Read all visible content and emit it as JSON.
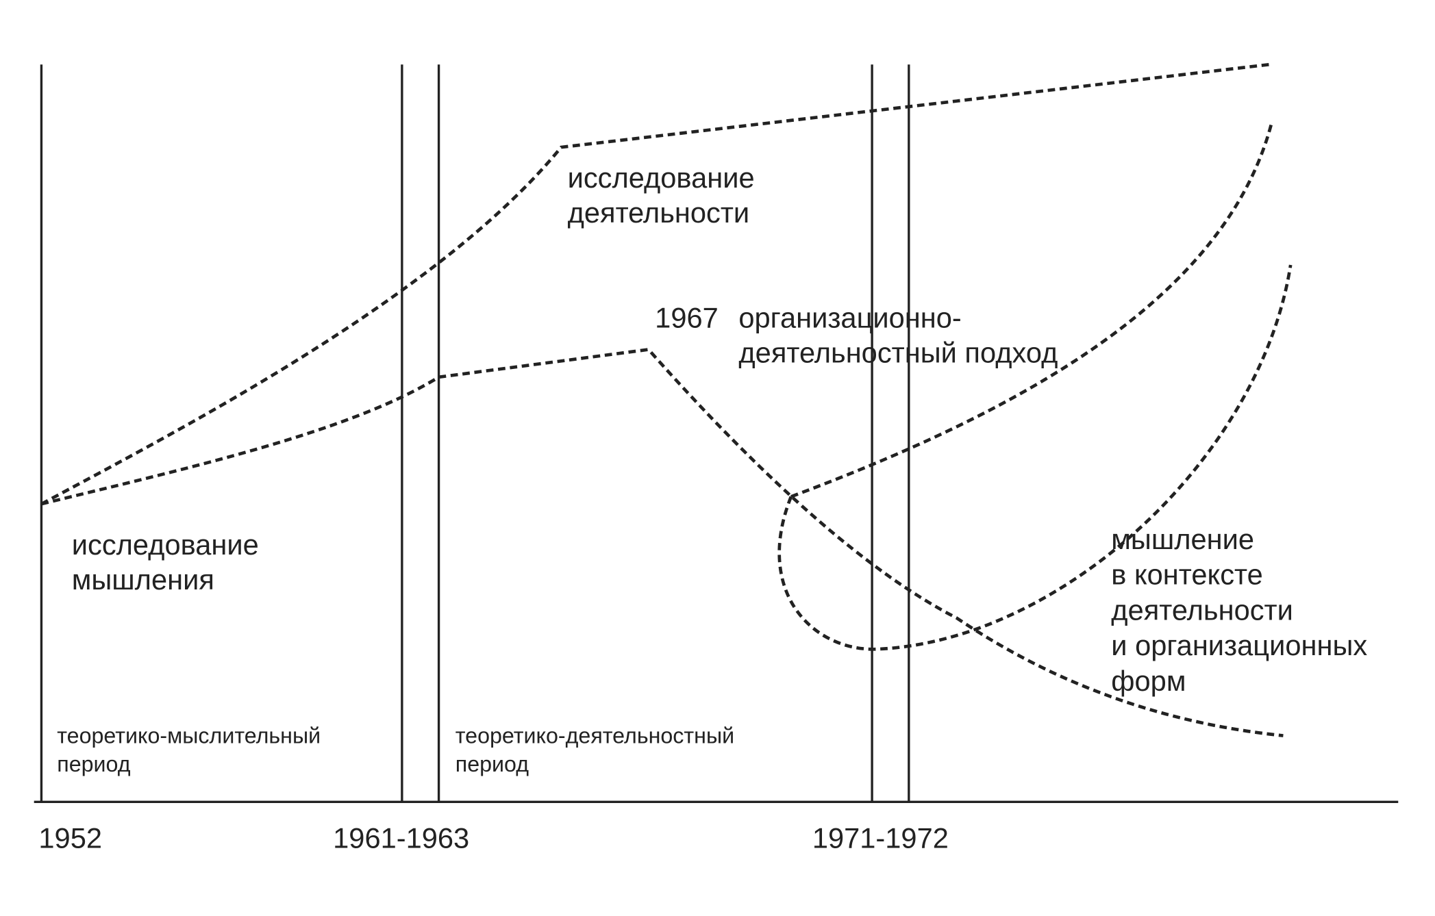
{
  "years": [
    "1952",
    "1961-1963",
    "1971-1972"
  ],
  "periods": [
    [
      "теоретико-мыслительный",
      "период"
    ],
    [
      "теоретико-деятельностный",
      "период"
    ]
  ],
  "labels": {
    "thinking": [
      "исследование",
      "мышления"
    ],
    "activity": [
      "исследование",
      "деятельности"
    ],
    "year_1967": "1967",
    "org_activity": [
      "организационно-",
      "деятельностный подход"
    ],
    "context": [
      "мышление",
      "в контексте",
      "деятельности",
      "и организационных",
      "форм"
    ]
  }
}
